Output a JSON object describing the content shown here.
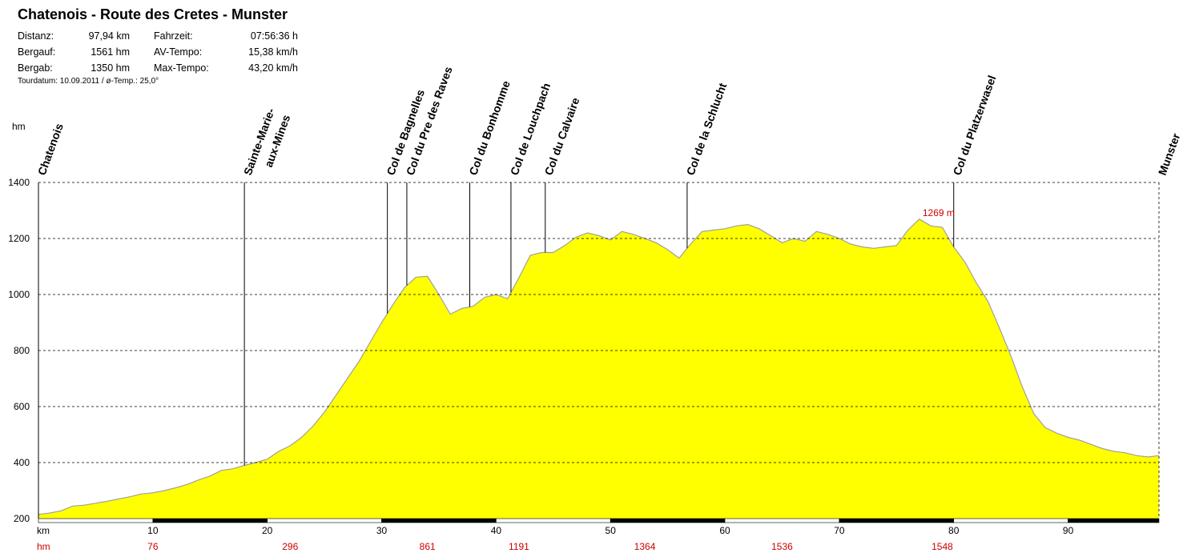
{
  "header": {
    "title": "Chatenois - Route des Cretes - Munster",
    "stats": [
      {
        "k1": "Distanz:",
        "v1": "97,94 km",
        "k2": "Fahrzeit:",
        "v2": "07:56:36 h"
      },
      {
        "k1": "Bergauf:",
        "v1": "1561 hm",
        "k2": "AV-Tempo:",
        "v2": "15,38 km/h"
      },
      {
        "k1": "Bergab:",
        "v1": "1350 hm",
        "k2": "Max-Tempo:",
        "v2": "43,20 km/h"
      }
    ],
    "tourdate": "Tourdatum: 10.09.2011  /  ø-Temp.: 25,0°"
  },
  "chart_data": {
    "type": "area",
    "xlabel": "km",
    "ylabel": "hm",
    "xlim": [
      0,
      97.94
    ],
    "ylim": [
      200,
      1400
    ],
    "yticks": [
      200,
      400,
      600,
      800,
      1000,
      1200,
      1400
    ],
    "xticks": [
      10,
      20,
      30,
      40,
      50,
      60,
      70,
      80,
      90
    ],
    "grid": true,
    "fill_color": "#ffff00",
    "line_color": "#a0a0a0",
    "label_color": "#cc0000",
    "series": [
      {
        "x": [
          0,
          1,
          2,
          3,
          4,
          5,
          6,
          7,
          8,
          9,
          10,
          11,
          12,
          13,
          14,
          15,
          16,
          17,
          18,
          19,
          20,
          21,
          22,
          23,
          24,
          25,
          26,
          27,
          28,
          29,
          30,
          31,
          32,
          33,
          34,
          35,
          36,
          37,
          38,
          39,
          40,
          41,
          42,
          43,
          44,
          45,
          46,
          47,
          48,
          49,
          50,
          51,
          52,
          53,
          54,
          55,
          56,
          57,
          58,
          59,
          60,
          61,
          62,
          63,
          64,
          65,
          66,
          67,
          68,
          69,
          70,
          71,
          72,
          73,
          74,
          75,
          76,
          77,
          78,
          79,
          80,
          81,
          82,
          83,
          84,
          85,
          86,
          87,
          88,
          89,
          90,
          91,
          92,
          93,
          94,
          95,
          96,
          97,
          97.94
        ],
        "y": [
          215,
          220,
          228,
          245,
          248,
          255,
          262,
          270,
          278,
          288,
          292,
          300,
          310,
          322,
          338,
          352,
          372,
          378,
          390,
          400,
          412,
          440,
          460,
          490,
          530,
          580,
          640,
          700,
          760,
          830,
          900,
          965,
          1025,
          1062,
          1065,
          1000,
          930,
          950,
          958,
          990,
          1000,
          985,
          1060,
          1140,
          1150,
          1150,
          1175,
          1205,
          1220,
          1210,
          1195,
          1225,
          1215,
          1200,
          1185,
          1160,
          1130,
          1180,
          1225,
          1230,
          1235,
          1245,
          1250,
          1235,
          1210,
          1185,
          1200,
          1190,
          1225,
          1215,
          1200,
          1180,
          1170,
          1165,
          1170,
          1175,
          1230,
          1269,
          1245,
          1240,
          1170,
          1115,
          1040,
          975,
          880,
          780,
          670,
          575,
          525,
          505,
          490,
          480,
          465,
          450,
          440,
          435,
          425,
          420,
          425
        ]
      }
    ],
    "max_label": "1269 m",
    "max_at_km": 77,
    "passes": [
      {
        "name": "Chatenois",
        "km": 0
      },
      {
        "name": "Sainte-Marie-",
        "name2": "aux-Mines",
        "km": 18
      },
      {
        "name": "Col de Bagnelles",
        "km": 30.5
      },
      {
        "name": "Col du Pre des Raves",
        "km": 32.2
      },
      {
        "name": "Col du Bonhomme",
        "km": 37.7
      },
      {
        "name": "Col de Louchpach",
        "km": 41.3
      },
      {
        "name": "Col du Calvaire",
        "km": 44.3
      },
      {
        "name": "Col de la Schlucht",
        "km": 56.7
      },
      {
        "name": "Col du Platzerwasel",
        "km": 80
      },
      {
        "name": "Munster",
        "km": 97.94
      }
    ],
    "bottom_axis": {
      "km_label": "km",
      "hm_label": "hm",
      "cumulative_climb": [
        {
          "km": 10,
          "value": "76"
        },
        {
          "km": 22,
          "value": "296"
        },
        {
          "km": 34,
          "value": "861"
        },
        {
          "km": 42,
          "value": "1191"
        },
        {
          "km": 53,
          "value": "1364"
        },
        {
          "km": 65,
          "value": "1536"
        },
        {
          "km": 79,
          "value": "1548"
        }
      ]
    }
  }
}
